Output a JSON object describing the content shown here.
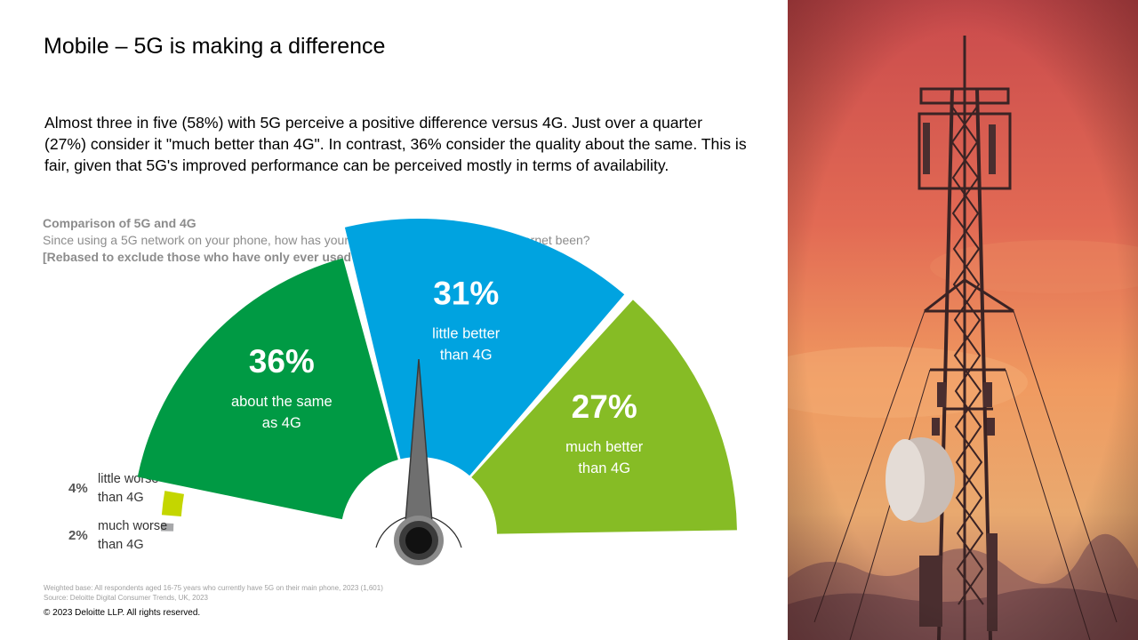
{
  "title": "Mobile – 5G is making a difference",
  "intro": "Almost three in five (58%) with 5G perceive a positive difference versus 4G. Just over a quarter (27%) consider it \"much better than 4G\". In contrast, 36% consider the quality about the same. This is fair, given that 5G's improved performance can be perceived mostly in terms of availability.",
  "chart_data": {
    "type": "pie",
    "title": "Comparison of 5G and 4G",
    "question": "Since using a 5G network on your phone, how has your overall experience of mobile internet been?",
    "note": "[Rebased to exclude those who have only ever used 5G, and those Who Don’t Know]",
    "unit": "%",
    "categories": [
      "much worse than 4G",
      "little worse than 4G",
      "about the same as 4G",
      "little better than 4G",
      "much better than 4G"
    ],
    "values": [
      2,
      4,
      36,
      31,
      27
    ],
    "value_labels": [
      "2%",
      "4%",
      "36%",
      "31%",
      "27%"
    ],
    "label_lines": [
      [
        "much worse",
        "than 4G"
      ],
      [
        "little worse",
        "than 4G"
      ],
      [
        "about the same",
        "as 4G"
      ],
      [
        "little better",
        "than 4G"
      ],
      [
        "much better",
        "than 4G"
      ]
    ],
    "colors": [
      "#a7a8aa",
      "#c4d600",
      "#009a44",
      "#00a3e0",
      "#86bc25"
    ],
    "needle_color": "#6f6f6f"
  },
  "footer": {
    "base": "Weighted base: All respondents aged 16-75 years who currently have 5G on their main phone, 2023 (1,601)",
    "source": "Source: Deloitte Digital Consumer Trends, UK, 2023"
  },
  "copyright": "© 2023 Deloitte LLP. All rights reserved."
}
